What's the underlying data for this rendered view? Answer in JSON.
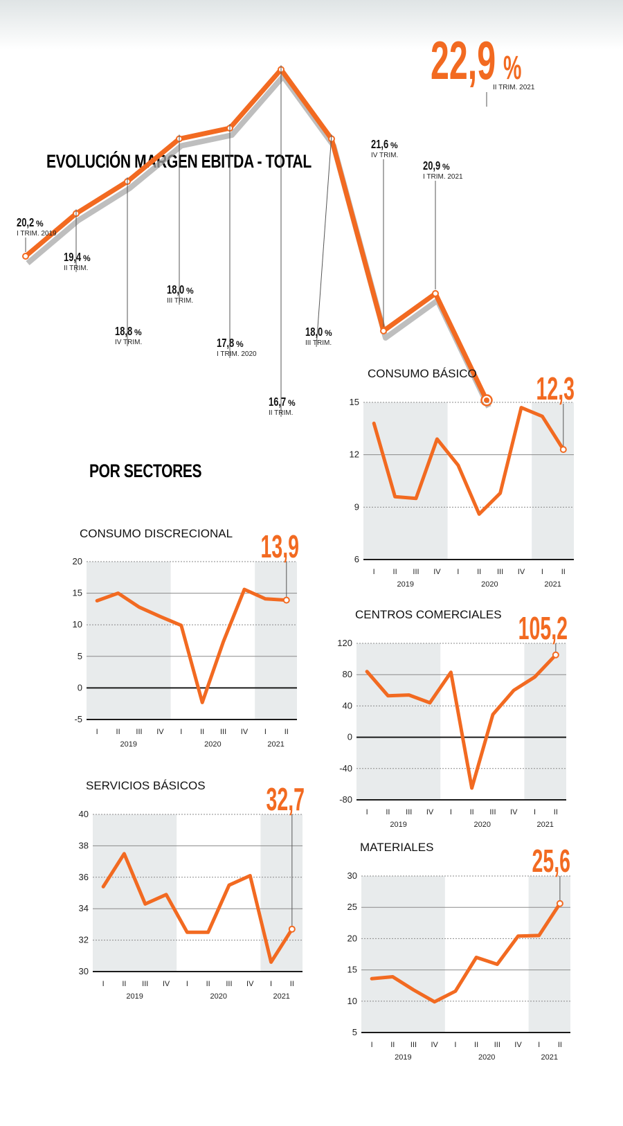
{
  "colors": {
    "accent": "#f26a21",
    "shade": "#e8ebec",
    "shadow": "#a8a8a8",
    "text": "#111111"
  },
  "main": {
    "title": "EVOLUCIÓN MARGEN EBITDA - TOTAL",
    "highlight": {
      "value": "22,9",
      "unit": "%",
      "label": "II TRIM. 2021"
    }
  },
  "sectors_title": "POR SECTORES",
  "chart_data": [
    {
      "type": "line",
      "title": "EVOLUCIÓN MARGEN EBITDA - TOTAL",
      "ylabel": "",
      "unit": "%",
      "x": [
        "I TRIM. 2019",
        "II TRIM.",
        "IV TRIM.",
        "III TRIM.",
        "I TRIM. 2020",
        "II TRIM.",
        "III TRIM.",
        "IV TRIM.",
        "I TRIM. 2021",
        "II TRIM. 2021"
      ],
      "values": [
        20.2,
        19.4,
        18.8,
        18.0,
        17.8,
        16.7,
        18.0,
        21.6,
        20.9,
        22.9
      ],
      "value_labels": [
        "20,2",
        "19,4",
        "18,8",
        "18,0",
        "17,8",
        "16,7",
        "18,0",
        "21,6",
        "20,9",
        "22,9"
      ],
      "ylim": [
        16.7,
        22.9
      ],
      "grid": false,
      "axes": false
    },
    {
      "type": "line",
      "title": "CONSUMO BÁSICO",
      "categories": [
        "I",
        "II",
        "III",
        "IV",
        "I",
        "II",
        "III",
        "IV",
        "I",
        "II"
      ],
      "years": [
        "2019",
        "2020",
        "2021"
      ],
      "values": [
        13.8,
        9.6,
        9.5,
        12.9,
        11.4,
        8.6,
        9.8,
        14.7,
        14.2,
        12.3
      ],
      "highlight": "12,3",
      "yticks": [
        6,
        9,
        12,
        15
      ],
      "ylim": [
        6,
        15
      ]
    },
    {
      "type": "line",
      "title": "CONSUMO DISCRECIONAL",
      "categories": [
        "I",
        "II",
        "III",
        "IV",
        "I",
        "II",
        "III",
        "IV",
        "I",
        "II"
      ],
      "years": [
        "2019",
        "2020",
        "2021"
      ],
      "values": [
        13.8,
        15.0,
        12.8,
        11.3,
        9.9,
        -2.3,
        7.3,
        15.6,
        14.1,
        13.9
      ],
      "highlight": "13,9",
      "yticks": [
        -5,
        0,
        5,
        10,
        15,
        20
      ],
      "ylim": [
        -5,
        20
      ]
    },
    {
      "type": "line",
      "title": "CENTROS COMERCIALES",
      "categories": [
        "I",
        "II",
        "III",
        "IV",
        "I",
        "II",
        "III",
        "IV",
        "I",
        "II"
      ],
      "years": [
        "2019",
        "2020",
        "2021"
      ],
      "values": [
        84,
        53,
        54,
        44,
        83,
        -65,
        29,
        60,
        77,
        105.2
      ],
      "highlight": "105,2",
      "yticks": [
        -80,
        -40,
        0,
        40,
        80,
        120
      ],
      "ylim": [
        -80,
        120
      ]
    },
    {
      "type": "line",
      "title": "SERVICIOS BÁSICOS",
      "categories": [
        "I",
        "II",
        "III",
        "IV",
        "I",
        "II",
        "III",
        "IV",
        "I",
        "II"
      ],
      "years": [
        "2019",
        "2020",
        "2021"
      ],
      "values": [
        35.4,
        37.5,
        34.3,
        34.9,
        32.5,
        32.5,
        35.5,
        36.1,
        30.6,
        32.7
      ],
      "highlight": "32,7",
      "yticks": [
        30,
        32,
        34,
        36,
        38,
        40
      ],
      "ylim": [
        30,
        40
      ]
    },
    {
      "type": "line",
      "title": "MATERIALES",
      "categories": [
        "I",
        "II",
        "III",
        "IV",
        "I",
        "II",
        "III",
        "IV",
        "I",
        "II"
      ],
      "years": [
        "2019",
        "2020",
        "2021"
      ],
      "values": [
        13.6,
        13.9,
        11.8,
        9.9,
        11.6,
        17.0,
        15.9,
        20.4,
        20.5,
        25.6
      ],
      "highlight": "25,6",
      "yticks": [
        5,
        10,
        15,
        20,
        25,
        30
      ],
      "ylim": [
        5,
        30
      ]
    }
  ]
}
